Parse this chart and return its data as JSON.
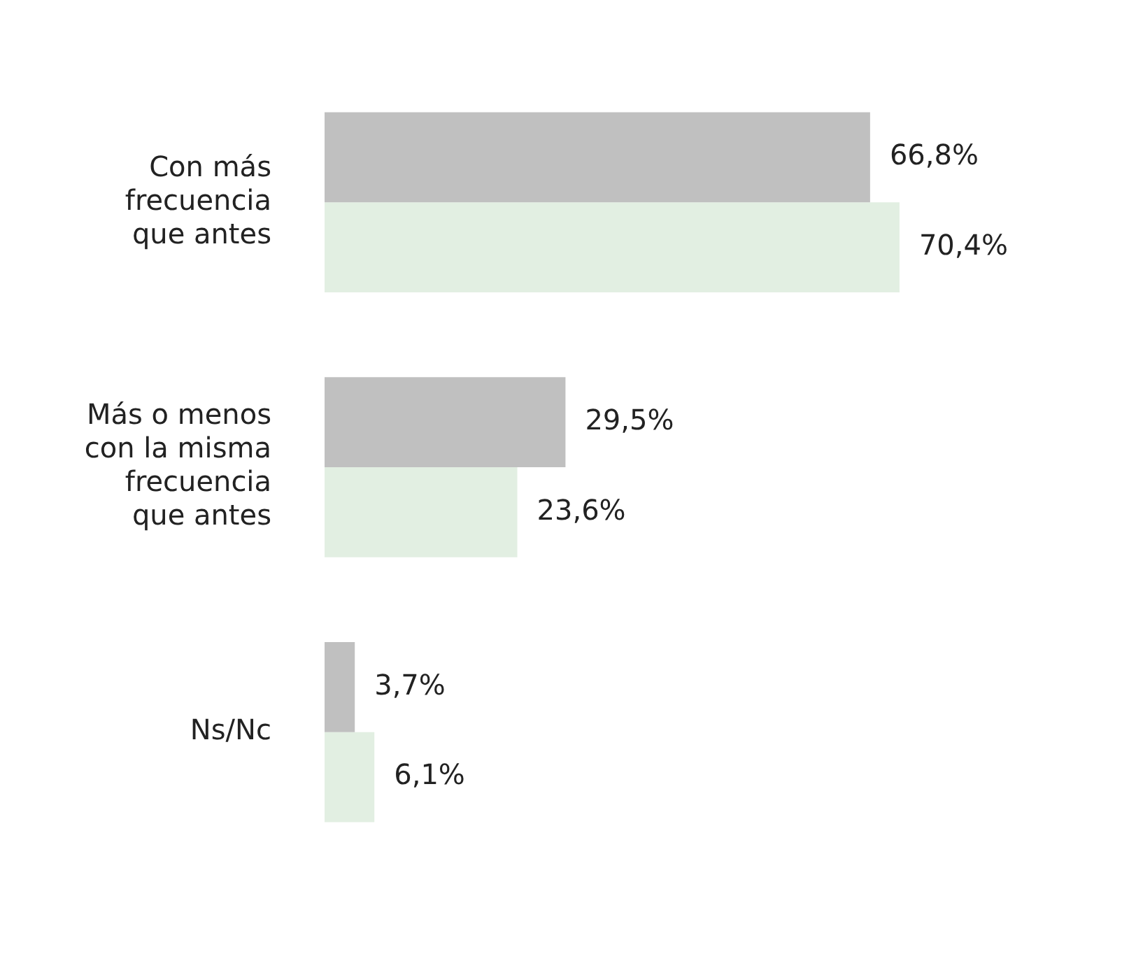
{
  "chart_data": {
    "type": "bar",
    "orientation": "horizontal",
    "categories": [
      "Con más frecuencia que antes",
      "Más o menos con la misma frecuencia que antes",
      "Ns/Nc"
    ],
    "series": [
      {
        "color": "#c0c0c0",
        "values": [
          66.8,
          29.5,
          3.7
        ],
        "value_labels": [
          "66,8%",
          "29,5%",
          "3,7%"
        ]
      },
      {
        "color": "#e2efe2",
        "values": [
          70.4,
          23.6,
          6.1
        ],
        "value_labels": [
          "70,4%",
          "23,6%",
          "6,1%"
        ]
      }
    ],
    "tick_labels": "y"
  }
}
